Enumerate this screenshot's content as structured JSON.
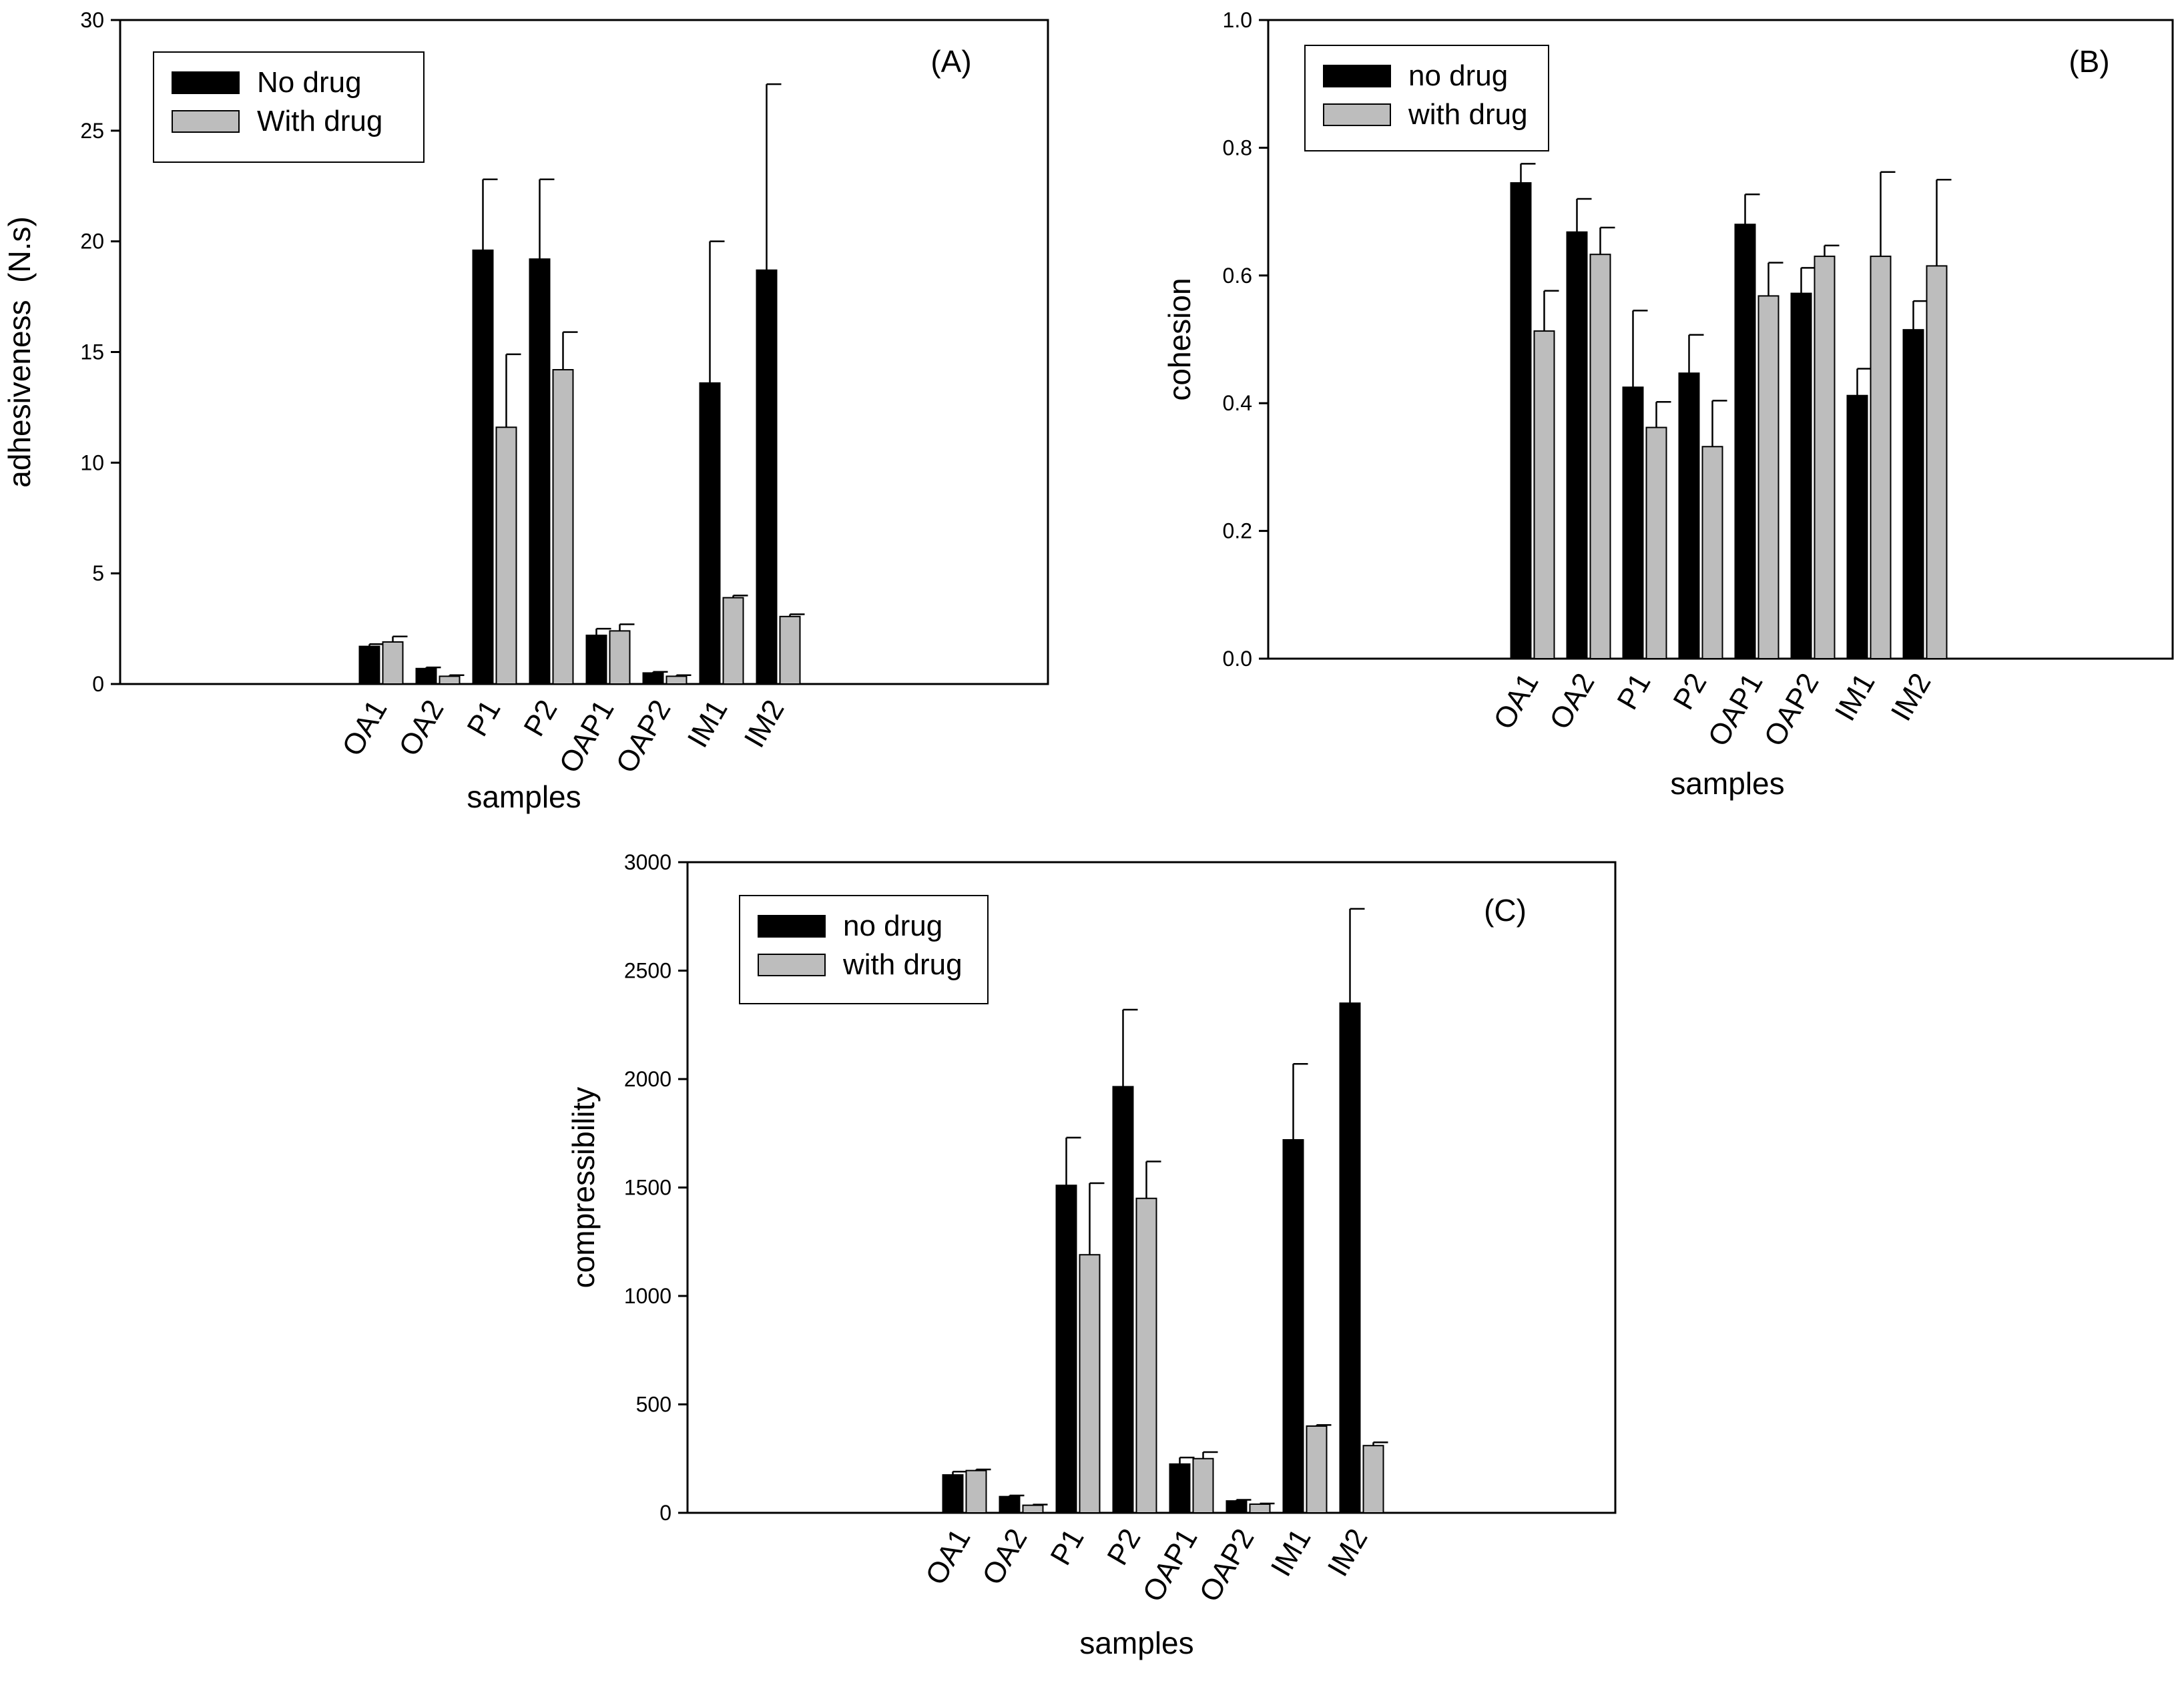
{
  "colors": {
    "no_drug": "#000000",
    "with_drug": "#bdbdbd",
    "axis": "#000000",
    "background": "#ffffff"
  },
  "chart_data": [
    {
      "type": "bar",
      "panel_tag": "(A)",
      "title": "",
      "xlabel": "samples",
      "ylabel": "adhesiveness  (N.s)",
      "ylim": [
        0,
        30
      ],
      "yticks": [
        0,
        5,
        10,
        15,
        20,
        25,
        30
      ],
      "ytick_labels": [
        "0",
        "5",
        "10",
        "15",
        "20",
        "25",
        "30"
      ],
      "categories": [
        "OA1",
        "OA2",
        "P1",
        "P2",
        "OAP1",
        "OAP2",
        "IM1",
        "IM2"
      ],
      "legend_position": "top-left",
      "grid": false,
      "series": [
        {
          "name": "No drug",
          "values": [
            1.7,
            0.7,
            19.6,
            19.2,
            2.2,
            0.5,
            13.6,
            18.7
          ],
          "errors": [
            0.1,
            0.05,
            3.2,
            3.6,
            0.3,
            0.05,
            6.4,
            8.4
          ]
        },
        {
          "name": "With drug",
          "values": [
            1.9,
            0.35,
            11.6,
            14.2,
            2.4,
            0.35,
            3.9,
            3.05
          ],
          "errors": [
            0.25,
            0.05,
            3.3,
            1.7,
            0.3,
            0.05,
            0.1,
            0.1
          ]
        }
      ]
    },
    {
      "type": "bar",
      "panel_tag": "(B)",
      "title": "",
      "xlabel": "samples",
      "ylabel": "cohesion",
      "ylim": [
        0,
        1
      ],
      "yticks": [
        0,
        0.2,
        0.4,
        0.6,
        0.8,
        1.0
      ],
      "ytick_labels": [
        "0.0",
        "0.2",
        "0.4",
        "0.6",
        "0.8",
        "1.0"
      ],
      "categories": [
        "OA1",
        "OA2",
        "P1",
        "P2",
        "OAP1",
        "OAP2",
        "IM1",
        "IM2"
      ],
      "legend_position": "top-left",
      "grid": false,
      "series": [
        {
          "name": "no drug",
          "values": [
            0.745,
            0.668,
            0.425,
            0.447,
            0.68,
            0.572,
            0.412,
            0.515
          ],
          "errors": [
            0.03,
            0.052,
            0.12,
            0.06,
            0.047,
            0.04,
            0.042,
            0.045
          ]
        },
        {
          "name": "with drug",
          "values": [
            0.513,
            0.633,
            0.362,
            0.332,
            0.568,
            0.63,
            0.63,
            0.615
          ],
          "errors": [
            0.063,
            0.042,
            0.04,
            0.072,
            0.052,
            0.017,
            0.132,
            0.135
          ]
        }
      ]
    },
    {
      "type": "bar",
      "panel_tag": "(C)",
      "title": "",
      "xlabel": "samples",
      "ylabel": "compressibility",
      "ylim": [
        0,
        3000
      ],
      "yticks": [
        0,
        500,
        1000,
        1500,
        2000,
        2500,
        3000
      ],
      "ytick_labels": [
        "0",
        "500",
        "1000",
        "1500",
        "2000",
        "2500",
        "3000"
      ],
      "categories": [
        "OA1",
        "OA2",
        "P1",
        "P2",
        "OAP1",
        "OAP2",
        "IM1",
        "IM2"
      ],
      "legend_position": "top-left",
      "grid": false,
      "series": [
        {
          "name": "no drug",
          "values": [
            175,
            75,
            1510,
            1965,
            225,
            55,
            1720,
            2350
          ],
          "errors": [
            15,
            5,
            220,
            355,
            30,
            5,
            350,
            435
          ]
        },
        {
          "name": "with drug",
          "values": [
            195,
            35,
            1190,
            1450,
            250,
            40,
            400,
            310
          ],
          "errors": [
            5,
            3,
            330,
            170,
            30,
            3,
            5,
            15
          ]
        }
      ]
    }
  ]
}
